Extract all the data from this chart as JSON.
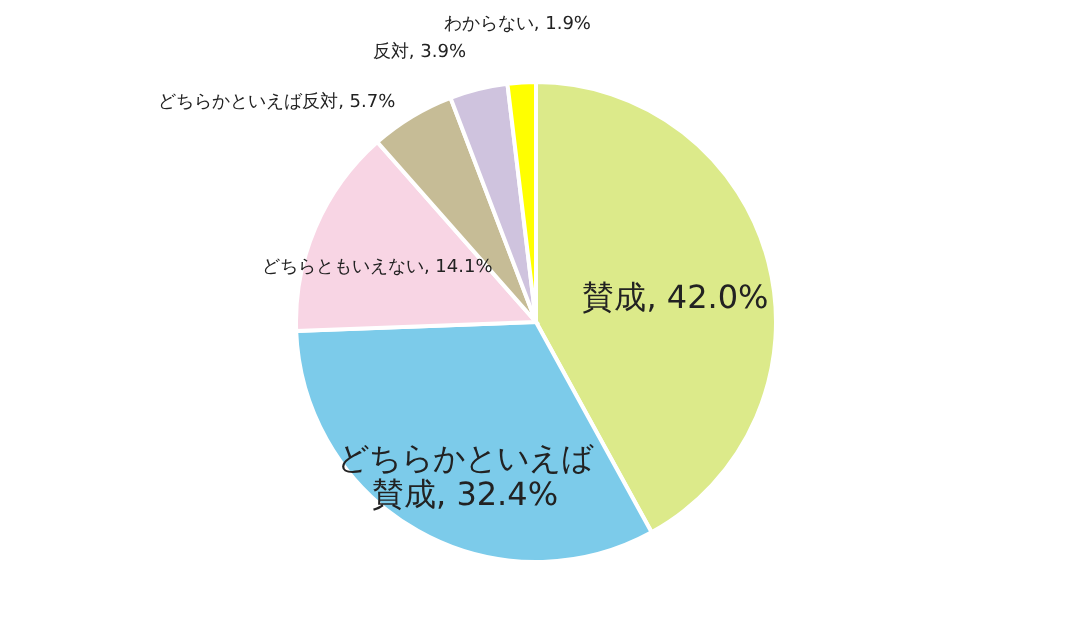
{
  "chart_data": {
    "type": "pie",
    "categories": [
      "賛成",
      "どちらかといえば賛成",
      "どちらともいえない",
      "どちらかといえば反対",
      "反対",
      "わからない"
    ],
    "values": [
      42.0,
      32.4,
      14.1,
      5.7,
      3.9,
      1.9
    ],
    "value_labels": [
      "42.0%",
      "32.4%",
      "14.1%",
      "5.7%",
      "3.9%",
      "1.9%"
    ],
    "colors": [
      "#dcea8a",
      "#7ccbea",
      "#f8d5e4",
      "#c6bc96",
      "#cfc3de",
      "#ffff00"
    ]
  }
}
